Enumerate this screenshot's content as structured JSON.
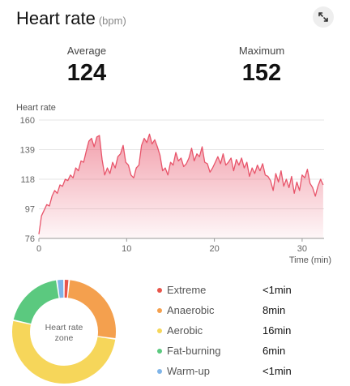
{
  "header": {
    "title": "Heart rate",
    "unit": "(bpm)",
    "expand_icon": "expand-diagonal-icon"
  },
  "stats": {
    "average_label": "Average",
    "average_value": "124",
    "maximum_label": "Maximum",
    "maximum_value": "152"
  },
  "chart_data": {
    "type": "area",
    "ylabel": "Heart rate",
    "xlabel": "Time (min)",
    "xlim": [
      0,
      32.5
    ],
    "ylim": [
      76,
      160
    ],
    "yticks": [
      76,
      97,
      118,
      139,
      160
    ],
    "xticks": [
      0,
      10,
      20,
      30
    ],
    "grid": true,
    "color": "#e8546a",
    "series": [
      {
        "x": [
          0,
          0.3,
          0.6,
          0.9,
          1.2,
          1.5,
          1.8,
          2.1,
          2.4,
          2.7,
          3.0,
          3.3,
          3.6,
          3.9,
          4.2,
          4.5,
          4.8,
          5.1,
          5.4,
          5.7,
          6.0,
          6.3,
          6.6,
          6.9,
          7.2,
          7.5,
          7.8,
          8.1,
          8.4,
          8.7,
          9.0,
          9.3,
          9.6,
          9.9,
          10.2,
          10.5,
          10.8,
          11.1,
          11.4,
          11.7,
          12.0,
          12.3,
          12.6,
          12.9,
          13.2,
          13.5,
          13.8,
          14.1,
          14.4,
          14.7,
          15.0,
          15.3,
          15.6,
          15.9,
          16.2,
          16.5,
          16.8,
          17.1,
          17.4,
          17.7,
          18.0,
          18.3,
          18.6,
          18.9,
          19.2,
          19.5,
          19.8,
          20.1,
          20.4,
          20.7,
          21.0,
          21.3,
          21.6,
          21.9,
          22.2,
          22.5,
          22.8,
          23.1,
          23.4,
          23.7,
          24.0,
          24.3,
          24.6,
          24.9,
          25.2,
          25.5,
          25.8,
          26.1,
          26.4,
          26.7,
          27.0,
          27.3,
          27.6,
          27.9,
          28.2,
          28.5,
          28.8,
          29.1,
          29.4,
          29.7,
          30.0,
          30.3,
          30.6,
          30.9,
          31.2,
          31.5,
          31.8,
          32.1,
          32.4
        ],
        "y": [
          79,
          92,
          96,
          100,
          99,
          106,
          110,
          108,
          114,
          113,
          118,
          117,
          121,
          119,
          126,
          124,
          131,
          130,
          138,
          145,
          147,
          141,
          148,
          149,
          132,
          121,
          126,
          122,
          130,
          126,
          134,
          136,
          142,
          130,
          128,
          121,
          119,
          126,
          128,
          142,
          147,
          144,
          150,
          143,
          146,
          141,
          135,
          124,
          126,
          121,
          130,
          128,
          137,
          131,
          133,
          127,
          129,
          133,
          140,
          131,
          136,
          134,
          141,
          130,
          129,
          123,
          126,
          130,
          134,
          129,
          136,
          128,
          130,
          133,
          124,
          132,
          128,
          133,
          126,
          130,
          120,
          126,
          122,
          128,
          124,
          129,
          121,
          120,
          117,
          110,
          122,
          116,
          124,
          113,
          118,
          112,
          120,
          108,
          116,
          110,
          121,
          119,
          125,
          115,
          112,
          106,
          113,
          118,
          114
        ]
      }
    ]
  },
  "zones": {
    "center_label": "Heart rate zone",
    "items": [
      {
        "name": "Extreme",
        "duration": "<1min",
        "color": "#e8564b",
        "minutes": 0.5
      },
      {
        "name": "Anaerobic",
        "duration": "8min",
        "color": "#f4a04e",
        "minutes": 8
      },
      {
        "name": "Aerobic",
        "duration": "16min",
        "color": "#f6d65a",
        "minutes": 16
      },
      {
        "name": "Fat-burning",
        "duration": "6min",
        "color": "#5bc97f",
        "minutes": 6
      },
      {
        "name": "Warm-up",
        "duration": "<1min",
        "color": "#7fb4e8",
        "minutes": 0.7
      }
    ]
  }
}
